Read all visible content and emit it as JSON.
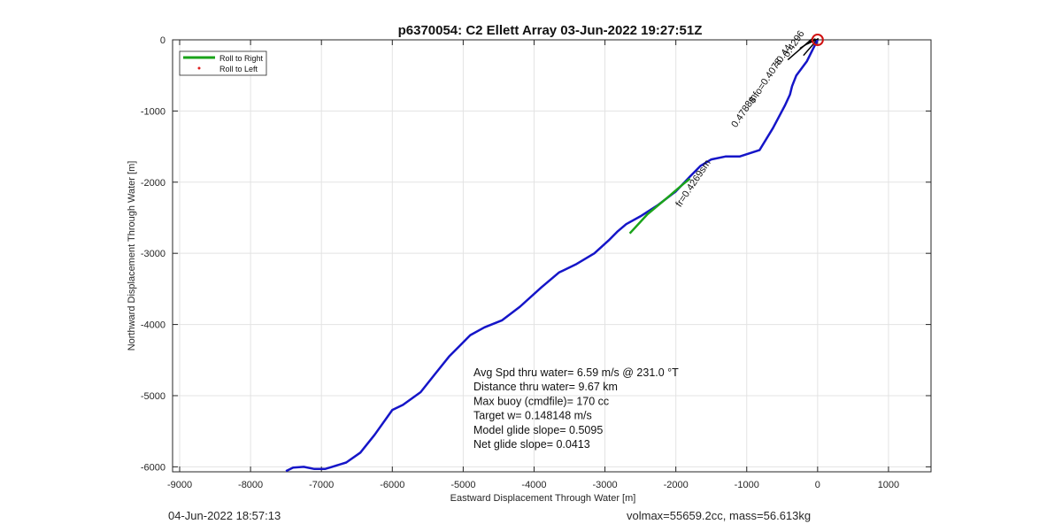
{
  "chart_data": {
    "type": "line",
    "title": "p6370054: C2 Ellett Array 03-Jun-2022 19:27:51Z",
    "xlabel": "Eastward Displacement Through Water [m]",
    "ylabel": "Northward Displacement Through Water [m]",
    "xlim": [
      -9100,
      1600
    ],
    "ylim": [
      -6070,
      0
    ],
    "xticks": [
      -9000,
      -8000,
      -7000,
      -6000,
      -5000,
      -4000,
      -3000,
      -2000,
      -1000,
      0,
      1000
    ],
    "yticks": [
      -6000,
      -5000,
      -4000,
      -3000,
      -2000,
      -1000,
      0
    ],
    "grid": true,
    "legend_position": "top-left",
    "legend": [
      {
        "label": "Roll to Right",
        "color": "#1aa31a",
        "style": "line"
      },
      {
        "label": "Roll to Left",
        "color": "#e02020",
        "style": "dot"
      }
    ],
    "series": [
      {
        "color": "#1515c8",
        "x": [
          -7500,
          -7400,
          -7250,
          -7100,
          -6950,
          -6850,
          -6650,
          -6450,
          -6250,
          -6000,
          -5850,
          -5600,
          -5400,
          -5200,
          -5050,
          -4900,
          -4700,
          -4450,
          -4200,
          -3900,
          -3650,
          -3400,
          -3150,
          -2950,
          -2820,
          -2700,
          -2500,
          -2250,
          -2000,
          -1800,
          -1650,
          -1500,
          -1300,
          -1100,
          -820,
          -630,
          -460,
          -390,
          -360,
          -300,
          -150,
          -60,
          0
        ],
        "y": [
          -6060,
          -6010,
          -6000,
          -6030,
          -6030,
          -6000,
          -5940,
          -5800,
          -5550,
          -5200,
          -5130,
          -4950,
          -4700,
          -4450,
          -4300,
          -4150,
          -4040,
          -3940,
          -3750,
          -3480,
          -3270,
          -3150,
          -3000,
          -2820,
          -2690,
          -2590,
          -2480,
          -2320,
          -2130,
          -1920,
          -1770,
          -1680,
          -1640,
          -1640,
          -1550,
          -1240,
          -920,
          -770,
          -650,
          -500,
          -300,
          -120,
          0
        ]
      },
      {
        "name": "Roll to Right",
        "color": "#1aa31a",
        "x": [
          -2650,
          -2400,
          -2100,
          -1900,
          -1800
        ],
        "y": [
          -2720,
          -2450,
          -2200,
          -2030,
          -1950
        ]
      }
    ],
    "annotations": [
      {
        "text": "fr=0.4269sm",
        "x": -1720,
        "y": -2040,
        "angle": -56
      },
      {
        "text": "0.4788m",
        "x": -1000,
        "y": -1020,
        "angle": -56
      },
      {
        "text": "$ fo=0.4078",
        "x": -700,
        "y": -600,
        "angle": -56
      },
      {
        "text": "=0.44",
        "x": -460,
        "y": -250,
        "angle": -56
      },
      {
        "text": "0.4296",
        "x": -300,
        "y": -80,
        "angle": -56
      }
    ],
    "stats_lines": [
      "Avg Spd thru water=  6.59 m/s @ 231.0 °T",
      "Distance thru water=  9.67 km",
      "Max buoy (cmdfile)= 170 cc",
      "Target w= 0.148148 m/s",
      "Model glide slope= 0.5095",
      "Net glide slope= 0.0413"
    ]
  },
  "footer": {
    "left": "04-Jun-2022 18:57:13",
    "right": "volmax=55659.2cc, mass=56.613kg"
  }
}
